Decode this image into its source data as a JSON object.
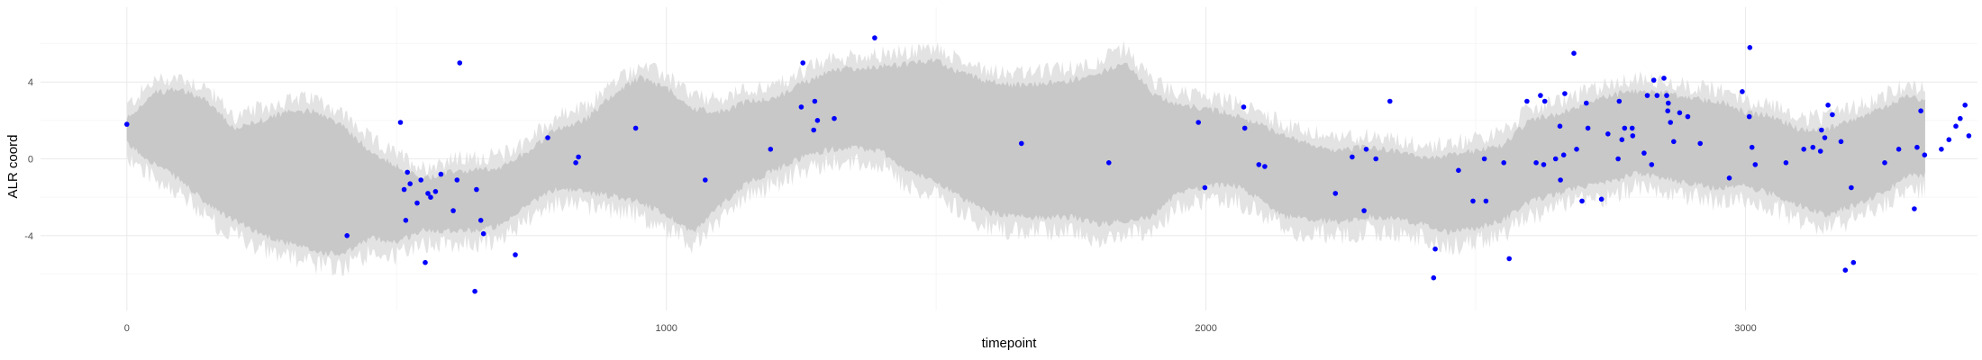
{
  "chart_data": {
    "type": "scatter",
    "title": "",
    "xlabel": "timepoint",
    "ylabel": "ALR coord",
    "xlim": [
      -160,
      3430
    ],
    "ylim": [
      -7.9,
      7.9
    ],
    "x_ticks": [
      0,
      1000,
      2000,
      3000
    ],
    "x_tick_labels": [
      "0",
      "1000",
      "2000",
      "3000"
    ],
    "y_ticks": [
      -4,
      0,
      4
    ],
    "y_tick_labels": [
      "-4",
      "0",
      "4"
    ],
    "grid": true,
    "legend": "none",
    "colors": {
      "points": "#0000ff",
      "band": "#c8c8c8",
      "band_fringe": "#e3e3e3",
      "grid_major": "#ebebeb",
      "grid_minor": "#f4f4f4"
    },
    "band": {
      "description_series": "predictive interval",
      "x": [
        0,
        50,
        100,
        150,
        200,
        250,
        300,
        350,
        400,
        450,
        500,
        550,
        600,
        650,
        700,
        750,
        800,
        850,
        900,
        950,
        1000,
        1050,
        1100,
        1150,
        1200,
        1250,
        1300,
        1350,
        1400,
        1450,
        1500,
        1550,
        1600,
        1650,
        1700,
        1750,
        1800,
        1850,
        1900,
        1950,
        2000,
        2050,
        2100,
        2150,
        2200,
        2250,
        2300,
        2350,
        2400,
        2450,
        2500,
        2550,
        2600,
        2650,
        2700,
        2750,
        2800,
        2850,
        2900,
        2950,
        3000,
        3050,
        3100,
        3150,
        3200,
        3250,
        3300,
        3335
      ],
      "upper": [
        2.3,
        3.6,
        3.8,
        3.2,
        1.7,
        2.2,
        2.6,
        2.7,
        1.9,
        0.6,
        -0.2,
        -0.9,
        -0.5,
        -0.4,
        -0.2,
        0.7,
        1.8,
        2.2,
        3.5,
        4.4,
        3.9,
        2.8,
        2.6,
        3.2,
        3.3,
        4.1,
        4.7,
        4.9,
        5.0,
        5.1,
        5.3,
        4.6,
        4.2,
        4.0,
        4.1,
        4.3,
        4.6,
        5.3,
        3.6,
        3.0,
        2.8,
        2.5,
        2.0,
        1.3,
        0.9,
        0.6,
        0.8,
        0.6,
        0.2,
        0.4,
        0.6,
        0.9,
        2.2,
        2.5,
        3.0,
        3.5,
        3.7,
        3.6,
        3.3,
        3.2,
        2.6,
        2.4,
        1.7,
        1.7,
        2.2,
        2.8,
        3.4,
        3.2
      ],
      "lower": [
        0.6,
        -0.4,
        -1.3,
        -2.6,
        -3.4,
        -4.1,
        -4.6,
        -5.0,
        -5.2,
        -4.3,
        -4.5,
        -3.9,
        -3.9,
        -3.9,
        -3.6,
        -2.4,
        -1.7,
        -1.9,
        -2.1,
        -2.4,
        -3.1,
        -4.0,
        -2.6,
        -1.4,
        -0.8,
        -0.1,
        0.3,
        0.4,
        0.2,
        -0.9,
        -1.3,
        -2.3,
        -3.0,
        -3.2,
        -3.2,
        -3.2,
        -3.6,
        -3.4,
        -3.2,
        -1.9,
        -1.6,
        -1.5,
        -2.3,
        -3.2,
        -3.3,
        -3.5,
        -3.2,
        -3.3,
        -3.6,
        -4.0,
        -3.8,
        -3.4,
        -2.4,
        -2.0,
        -1.6,
        -1.4,
        -0.9,
        -1.2,
        -1.5,
        -1.7,
        -1.6,
        -2.0,
        -2.6,
        -3.1,
        -2.6,
        -2.0,
        -1.1,
        -1.0
      ]
    },
    "series": [
      {
        "points": [
          [
            0,
            1.8
          ],
          [
            408,
            -4.0
          ],
          [
            507,
            1.9
          ],
          [
            514,
            -1.6
          ],
          [
            520,
            -0.7
          ],
          [
            517,
            -3.2
          ],
          [
            525,
            -1.3
          ],
          [
            538,
            -2.3
          ],
          [
            545,
            -1.1
          ],
          [
            553,
            -5.4
          ],
          [
            558,
            -1.8
          ],
          [
            563,
            -2.0
          ],
          [
            572,
            -1.7
          ],
          [
            582,
            -0.8
          ],
          [
            605,
            -2.7
          ],
          [
            612,
            -1.1
          ],
          [
            617,
            5.0
          ],
          [
            645,
            -6.9
          ],
          [
            648,
            -1.6
          ],
          [
            656,
            -3.2
          ],
          [
            661,
            -3.9
          ],
          [
            720,
            -5.0
          ],
          [
            780,
            1.1
          ],
          [
            832,
            -0.2
          ],
          [
            837,
            0.1
          ],
          [
            943,
            1.6
          ],
          [
            1072,
            -1.1
          ],
          [
            1193,
            0.5
          ],
          [
            1250,
            2.7
          ],
          [
            1253,
            5.0
          ],
          [
            1280,
            2.0
          ],
          [
            1275,
            3.0
          ],
          [
            1273,
            1.5
          ],
          [
            1311,
            2.1
          ],
          [
            1386,
            6.3
          ],
          [
            1658,
            0.8
          ],
          [
            1820,
            -0.2
          ],
          [
            1986,
            1.9
          ],
          [
            1998,
            -1.5
          ],
          [
            2070,
            2.7
          ],
          [
            2072,
            1.6
          ],
          [
            2098,
            -0.3
          ],
          [
            2109,
            -0.4
          ],
          [
            2240,
            -1.8
          ],
          [
            2271,
            0.1
          ],
          [
            2293,
            -2.7
          ],
          [
            2297,
            0.5
          ],
          [
            2315,
            0.0
          ],
          [
            2341,
            3.0
          ],
          [
            2422,
            -6.2
          ],
          [
            2425,
            -4.7
          ],
          [
            2468,
            -0.6
          ],
          [
            2495,
            -2.2
          ],
          [
            2516,
            0.0
          ],
          [
            2519,
            -2.2
          ],
          [
            2552,
            -0.2
          ],
          [
            2562,
            -5.2
          ],
          [
            2595,
            3.0
          ],
          [
            2612,
            -0.2
          ],
          [
            2620,
            3.3
          ],
          [
            2626,
            -0.3
          ],
          [
            2628,
            3.0
          ],
          [
            2648,
            0.0
          ],
          [
            2656,
            1.7
          ],
          [
            2657,
            -1.1
          ],
          [
            2663,
            0.2
          ],
          [
            2665,
            3.4
          ],
          [
            2682,
            5.5
          ],
          [
            2687,
            0.5
          ],
          [
            2697,
            -2.2
          ],
          [
            2708,
            1.6
          ],
          [
            2705,
            2.9
          ],
          [
            2733,
            -2.1
          ],
          [
            2745,
            1.3
          ],
          [
            2764,
            0.0
          ],
          [
            2766,
            3.0
          ],
          [
            2776,
            1.6
          ],
          [
            2771,
            1.0
          ],
          [
            2790,
            1.6
          ],
          [
            2791,
            1.2
          ],
          [
            2812,
            0.3
          ],
          [
            2818,
            3.3
          ],
          [
            2826,
            -0.3
          ],
          [
            2830,
            4.1
          ],
          [
            2836,
            3.3
          ],
          [
            2849,
            4.2
          ],
          [
            2854,
            3.3
          ],
          [
            2857,
            2.9
          ],
          [
            2856,
            2.5
          ],
          [
            2861,
            1.9
          ],
          [
            2867,
            0.9
          ],
          [
            2878,
            2.4
          ],
          [
            2893,
            2.2
          ],
          [
            2916,
            0.8
          ],
          [
            2970,
            -1.0
          ],
          [
            2994,
            3.5
          ],
          [
            3007,
            2.2
          ],
          [
            3008,
            5.8
          ],
          [
            3012,
            0.6
          ],
          [
            3018,
            -0.3
          ],
          [
            3075,
            -0.2
          ],
          [
            3108,
            0.5
          ],
          [
            3125,
            0.6
          ],
          [
            3139,
            0.4
          ],
          [
            3141,
            1.5
          ],
          [
            3147,
            1.1
          ],
          [
            3153,
            2.8
          ],
          [
            3161,
            2.3
          ],
          [
            3177,
            0.9
          ],
          [
            3185,
            -5.8
          ],
          [
            3196,
            -1.5
          ],
          [
            3200,
            -5.4
          ],
          [
            3258,
            -0.2
          ],
          [
            3284,
            0.5
          ],
          [
            3313,
            -2.6
          ],
          [
            3318,
            0.6
          ],
          [
            3325,
            2.5
          ],
          [
            3332,
            0.2
          ],
          [
            3363,
            0.5
          ],
          [
            3377,
            1.0
          ],
          [
            3390,
            1.7
          ],
          [
            3398,
            2.1
          ],
          [
            3407,
            2.8
          ],
          [
            3414,
            1.2
          ]
        ]
      }
    ]
  }
}
